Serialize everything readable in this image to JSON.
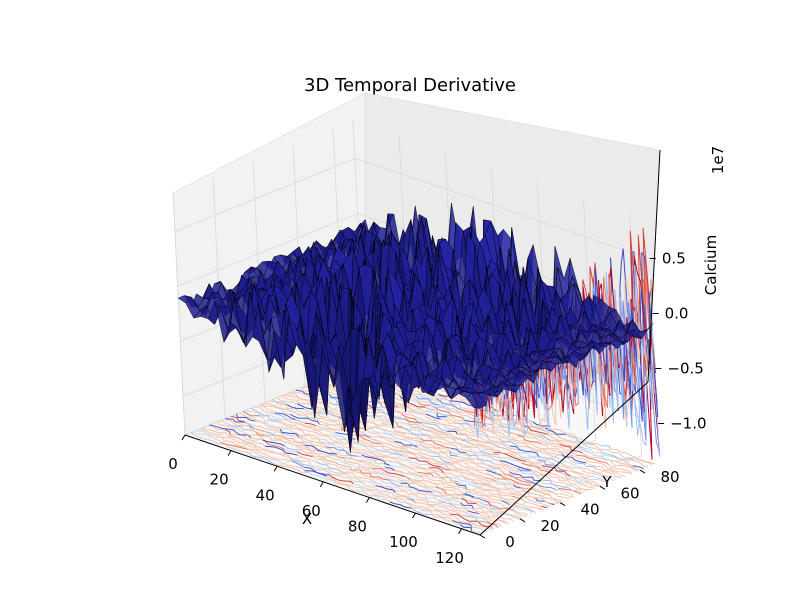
{
  "chart_data": {
    "type": "3d-surface",
    "title": "3D Temporal Derivative",
    "xlabel": "X",
    "ylabel": "Y",
    "zlabel": "Calcium",
    "z_offset_label": "1e7",
    "x_ticks": [
      "0",
      "20",
      "40",
      "60",
      "80",
      "100",
      "120"
    ],
    "y_ticks": [
      "0",
      "20",
      "40",
      "60",
      "80"
    ],
    "z_ticks": [
      "0.5",
      "0.0",
      "-0.5",
      "-1.0"
    ],
    "z_tick_labels": [
      "0.5",
      "0.0",
      "−0.5",
      "−1.0"
    ],
    "x_range": [
      0,
      128
    ],
    "y_range": [
      0,
      90
    ],
    "z_range": [
      -1.35,
      0.85
    ],
    "z_units_scale": 10000000,
    "colormap": "coolwarm",
    "surface_color": "#00006e",
    "surface_edge_color": "#000000",
    "contour_projections": [
      "x",
      "y",
      "z"
    ],
    "grid": true
  }
}
